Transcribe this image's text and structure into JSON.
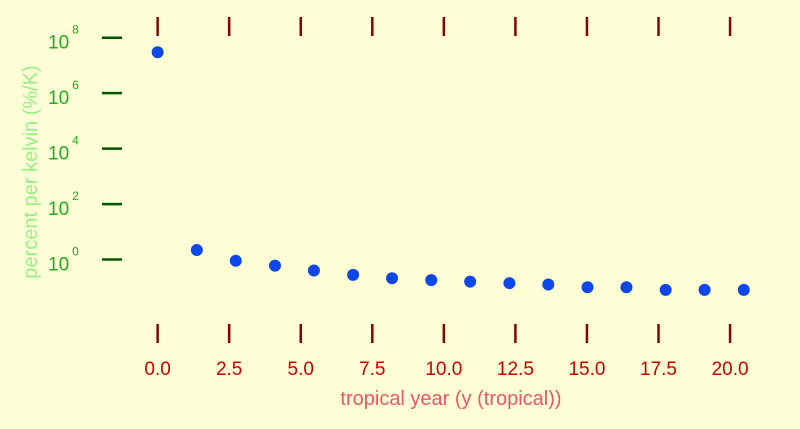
{
  "chart_data": {
    "type": "scatter",
    "xlabel": "tropical year (y (tropical))",
    "ylabel": "percent per kelvin (%/K)",
    "xlim": [
      -1.0,
      21.5
    ],
    "ylim": [
      -3.3,
      9.0
    ],
    "yscale": "log",
    "grid": false,
    "x_ticks": [
      0.0,
      2.5,
      5.0,
      7.5,
      10.0,
      12.5,
      15.0,
      17.5,
      20.0
    ],
    "x_tick_labels": [
      "0.0",
      "2.5",
      "5.0",
      "7.5",
      "10.0",
      "12.5",
      "15.0",
      "17.5",
      "20.0"
    ],
    "y_ticks_exponent": [
      0,
      2,
      4,
      6,
      8
    ],
    "y_tick_base": "10",
    "y_tick_exponents": [
      "0",
      "2",
      "4",
      "6",
      "8"
    ],
    "points": [
      {
        "x": 0.0,
        "y": 30000000
      },
      {
        "x": 1.37,
        "y": 2.2
      },
      {
        "x": 2.73,
        "y": 0.9
      },
      {
        "x": 4.1,
        "y": 0.6
      },
      {
        "x": 5.46,
        "y": 0.4
      },
      {
        "x": 6.83,
        "y": 0.28
      },
      {
        "x": 8.19,
        "y": 0.21
      },
      {
        "x": 9.56,
        "y": 0.18
      },
      {
        "x": 10.92,
        "y": 0.16
      },
      {
        "x": 12.29,
        "y": 0.14
      },
      {
        "x": 13.65,
        "y": 0.125
      },
      {
        "x": 15.02,
        "y": 0.1
      },
      {
        "x": 16.38,
        "y": 0.1
      },
      {
        "x": 17.75,
        "y": 0.08
      },
      {
        "x": 19.11,
        "y": 0.08
      },
      {
        "x": 20.48,
        "y": 0.08
      }
    ],
    "colors": {
      "background": "#ffffd6",
      "points": "#0d47e8",
      "x_ticks": "#880000",
      "x_tick_labels": "#cc0000",
      "x_title": "#ee5566",
      "y_ticks": "#005500",
      "y_tick_labels": "#22aa22",
      "y_title": "#99ee88"
    }
  }
}
